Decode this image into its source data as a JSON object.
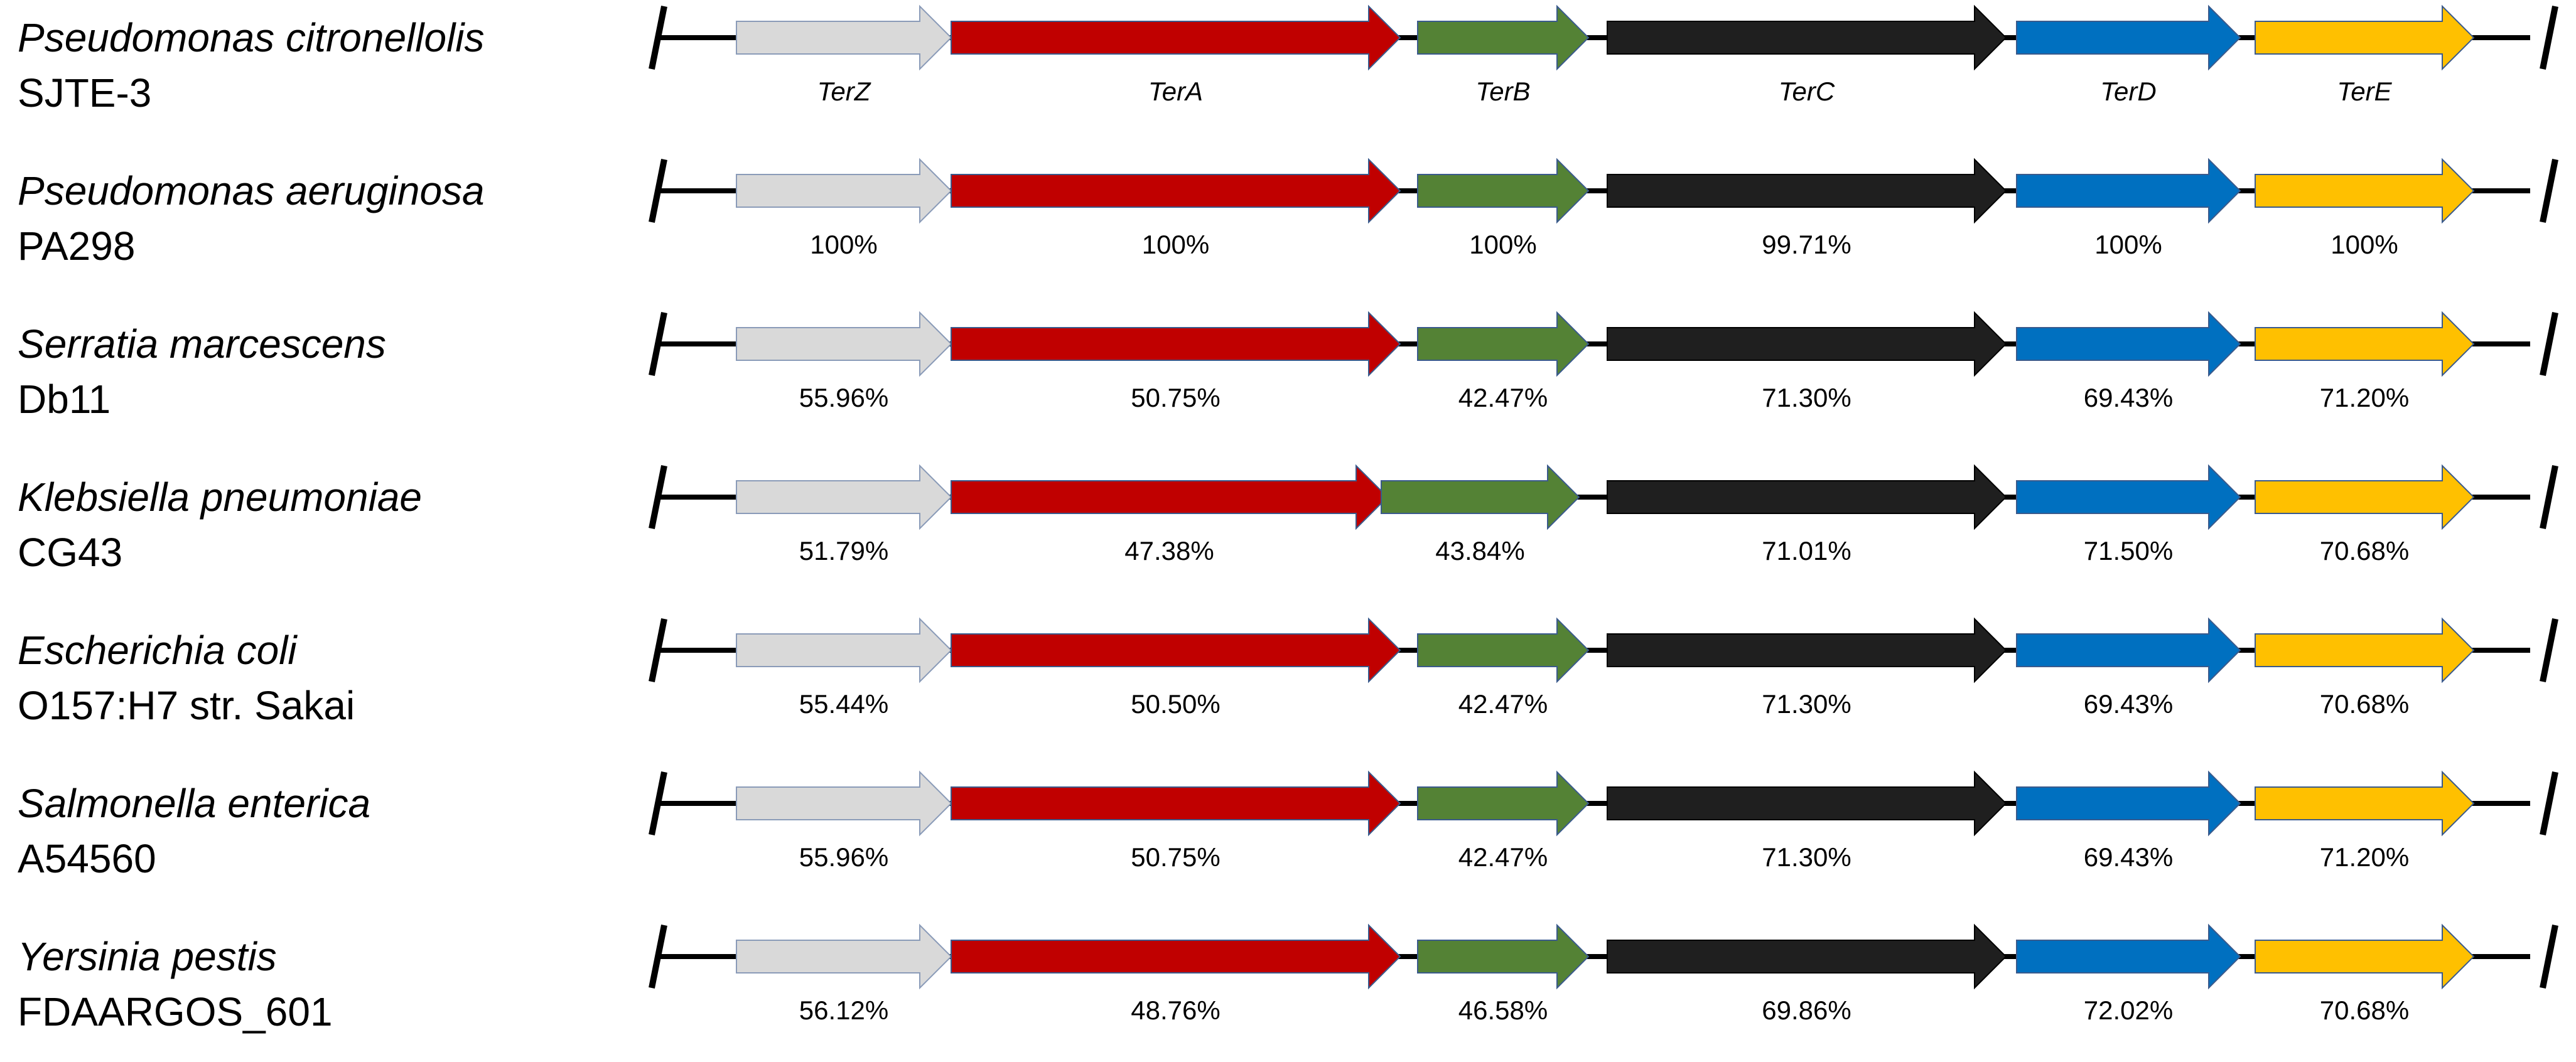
{
  "genes": [
    {
      "name": "TerZ",
      "color": "#d9d9d9"
    },
    {
      "name": "TerA",
      "color": "#c00000"
    },
    {
      "name": "TerB",
      "color": "#548235"
    },
    {
      "name": "TerC",
      "color": "#1f1f1f"
    },
    {
      "name": "TerD",
      "color": "#0070c0"
    },
    {
      "name": "TerE",
      "color": "#ffc000"
    }
  ],
  "organisms": [
    {
      "species": "Pseudomonas citronellolis",
      "strain": "SJTE-3",
      "values": [
        "TerZ",
        "TerA",
        "TerB",
        "TerC",
        "TerD",
        "TerE"
      ],
      "reference": true
    },
    {
      "species": "Pseudomonas aeruginosa",
      "strain": "PA298",
      "values": [
        "100%",
        "100%",
        "100%",
        "99.71%",
        "100%",
        "100%"
      ]
    },
    {
      "species": "Serratia marcescens",
      "strain": "Db11",
      "values": [
        "55.96%",
        "50.75%",
        "42.47%",
        "71.30%",
        "69.43%",
        "71.20%"
      ]
    },
    {
      "species": "Klebsiella pneumoniae",
      "strain": "CG43",
      "values": [
        "51.79%",
        "47.38%",
        "43.84%",
        "71.01%",
        "71.50%",
        "70.68%"
      ]
    },
    {
      "species": "Escherichia coli",
      "strain": "O157:H7 str. Sakai",
      "values": [
        "55.44%",
        "50.50%",
        "42.47%",
        "71.30%",
        "69.43%",
        "70.68%"
      ]
    },
    {
      "species": "Salmonella enterica",
      "strain": "A54560",
      "values": [
        "55.96%",
        "50.75%",
        "42.47%",
        "71.30%",
        "69.43%",
        "71.20%"
      ]
    },
    {
      "species": "Yersinia pestis",
      "strain": "FDAARGOS_601",
      "values": [
        "56.12%",
        "48.76%",
        "46.58%",
        "69.86%",
        "72.02%",
        "70.68%"
      ]
    }
  ]
}
